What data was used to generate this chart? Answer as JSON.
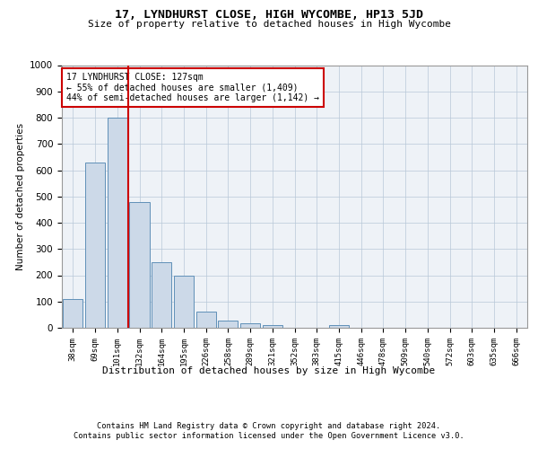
{
  "title": "17, LYNDHURST CLOSE, HIGH WYCOMBE, HP13 5JD",
  "subtitle": "Size of property relative to detached houses in High Wycombe",
  "xlabel": "Distribution of detached houses by size in High Wycombe",
  "ylabel": "Number of detached properties",
  "categories": [
    "38sqm",
    "69sqm",
    "101sqm",
    "132sqm",
    "164sqm",
    "195sqm",
    "226sqm",
    "258sqm",
    "289sqm",
    "321sqm",
    "352sqm",
    "383sqm",
    "415sqm",
    "446sqm",
    "478sqm",
    "509sqm",
    "540sqm",
    "572sqm",
    "603sqm",
    "635sqm",
    "666sqm"
  ],
  "values": [
    110,
    630,
    800,
    480,
    250,
    200,
    60,
    28,
    18,
    10,
    0,
    0,
    10,
    0,
    0,
    0,
    0,
    0,
    0,
    0,
    0
  ],
  "bar_color": "#ccd9e8",
  "bar_edge_color": "#6090b8",
  "vline_color": "#cc0000",
  "vline_pos": 2.5,
  "annotation_text": "17 LYNDHURST CLOSE: 127sqm\n← 55% of detached houses are smaller (1,409)\n44% of semi-detached houses are larger (1,142) →",
  "annotation_box_color": "#ffffff",
  "annotation_box_edge": "#cc0000",
  "ylim": [
    0,
    1000
  ],
  "yticks": [
    0,
    100,
    200,
    300,
    400,
    500,
    600,
    700,
    800,
    900,
    1000
  ],
  "footer1": "Contains HM Land Registry data © Crown copyright and database right 2024.",
  "footer2": "Contains public sector information licensed under the Open Government Licence v3.0.",
  "plot_bg_color": "#eef2f7"
}
